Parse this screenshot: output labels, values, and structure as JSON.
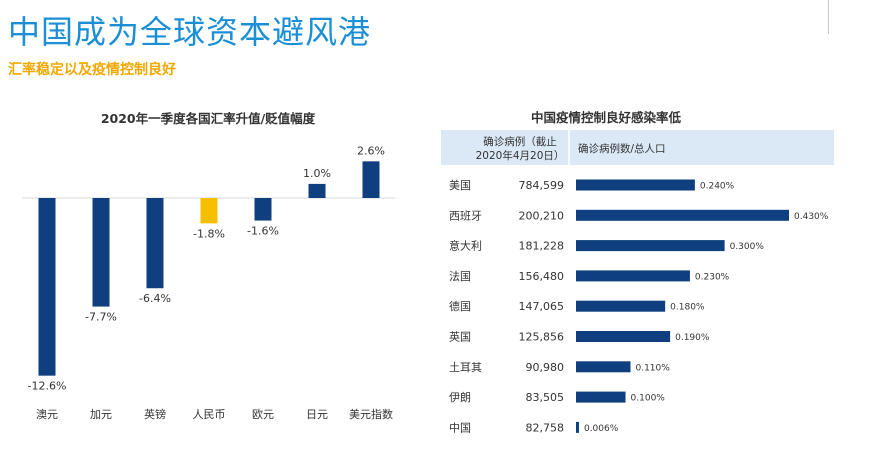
{
  "header": {
    "title": "中国成为全球资本避风港",
    "subtitle": "汇率稳定以及疫情控制良好"
  },
  "colors": {
    "navy": "#0f3f7e",
    "highlight": "#f6c000",
    "header_bg": "#dbe9f6",
    "title": "#1a8fd6",
    "subtitle": "#f2a800"
  },
  "chart_data": [
    {
      "type": "bar",
      "title": "2020年一季度各国汇率升值/贬值幅度",
      "categories": [
        "澳元",
        "加元",
        "英镑",
        "人民币",
        "欧元",
        "日元",
        "美元指数"
      ],
      "values": [
        -12.6,
        -7.7,
        -6.4,
        -1.8,
        -1.6,
        1.0,
        2.6
      ],
      "value_labels": [
        "-12.6%",
        "-7.7%",
        "-6.4%",
        "-1.8%",
        "-1.6%",
        "1.0%",
        "2.6%"
      ],
      "highlight": "人民币",
      "xlabel": "",
      "ylabel": "",
      "ylim": [
        -13,
        3
      ]
    },
    {
      "type": "bar",
      "orientation": "horizontal",
      "title": "中国疫情控制良好感染率低",
      "column_headers": [
        "确诊病例（截止",
        "2020年4月20日）",
        "确诊病例数/总人口"
      ],
      "categories": [
        "美国",
        "西班牙",
        "意大利",
        "法国",
        "德国",
        "英国",
        "土耳其",
        "伊朗",
        "中国"
      ],
      "cases": [
        "784,599",
        "200,210",
        "181,228",
        "156,480",
        "147,065",
        "125,856",
        "90,980",
        "83,505",
        "82,758"
      ],
      "values": [
        0.24,
        0.43,
        0.3,
        0.23,
        0.18,
        0.19,
        0.11,
        0.1,
        0.006
      ],
      "value_labels": [
        "0.240%",
        "0.430%",
        "0.300%",
        "0.230%",
        "0.180%",
        "0.190%",
        "0.110%",
        "0.100%",
        "0.006%"
      ],
      "xlim": [
        0,
        0.43
      ]
    }
  ]
}
